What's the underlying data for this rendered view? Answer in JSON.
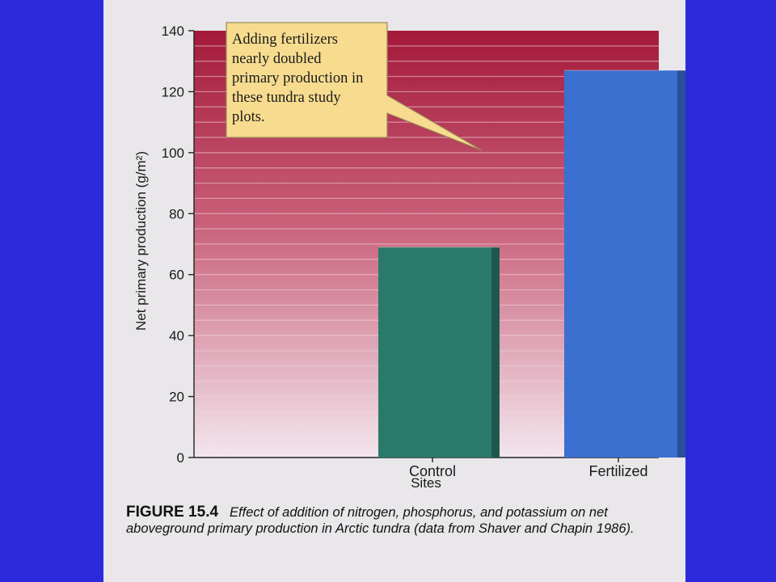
{
  "chart_data": {
    "type": "bar",
    "categories": [
      "Control",
      "Fertilized"
    ],
    "values": [
      69,
      127
    ],
    "ylim": [
      0,
      140
    ],
    "yticks": [
      0,
      20,
      40,
      60,
      80,
      100,
      120,
      140
    ],
    "ylabel": "Net primary production (g/m²)",
    "xlabel": "Sites",
    "grid": true,
    "bar_colors": [
      "#2a7a6a",
      "#3b6fd0"
    ],
    "annotation": {
      "lines": [
        "Adding fertilizers",
        "nearly doubled",
        "primary production in",
        "these tundra study",
        "plots."
      ],
      "points_to": "Fertilized"
    }
  },
  "caption": {
    "figure_number": "FIGURE 15.4",
    "text": "Effect of addition of nitrogen, phosphorus, and potassium on net aboveground primary production in Arctic tundra (data from Shaver and Chapin 1986)."
  },
  "colors": {
    "slide_background": "#2b2bdc",
    "plot_top": "#a4193a",
    "plot_bottom": "#f3e6ee",
    "callout_fill": "#f7dc8f"
  }
}
